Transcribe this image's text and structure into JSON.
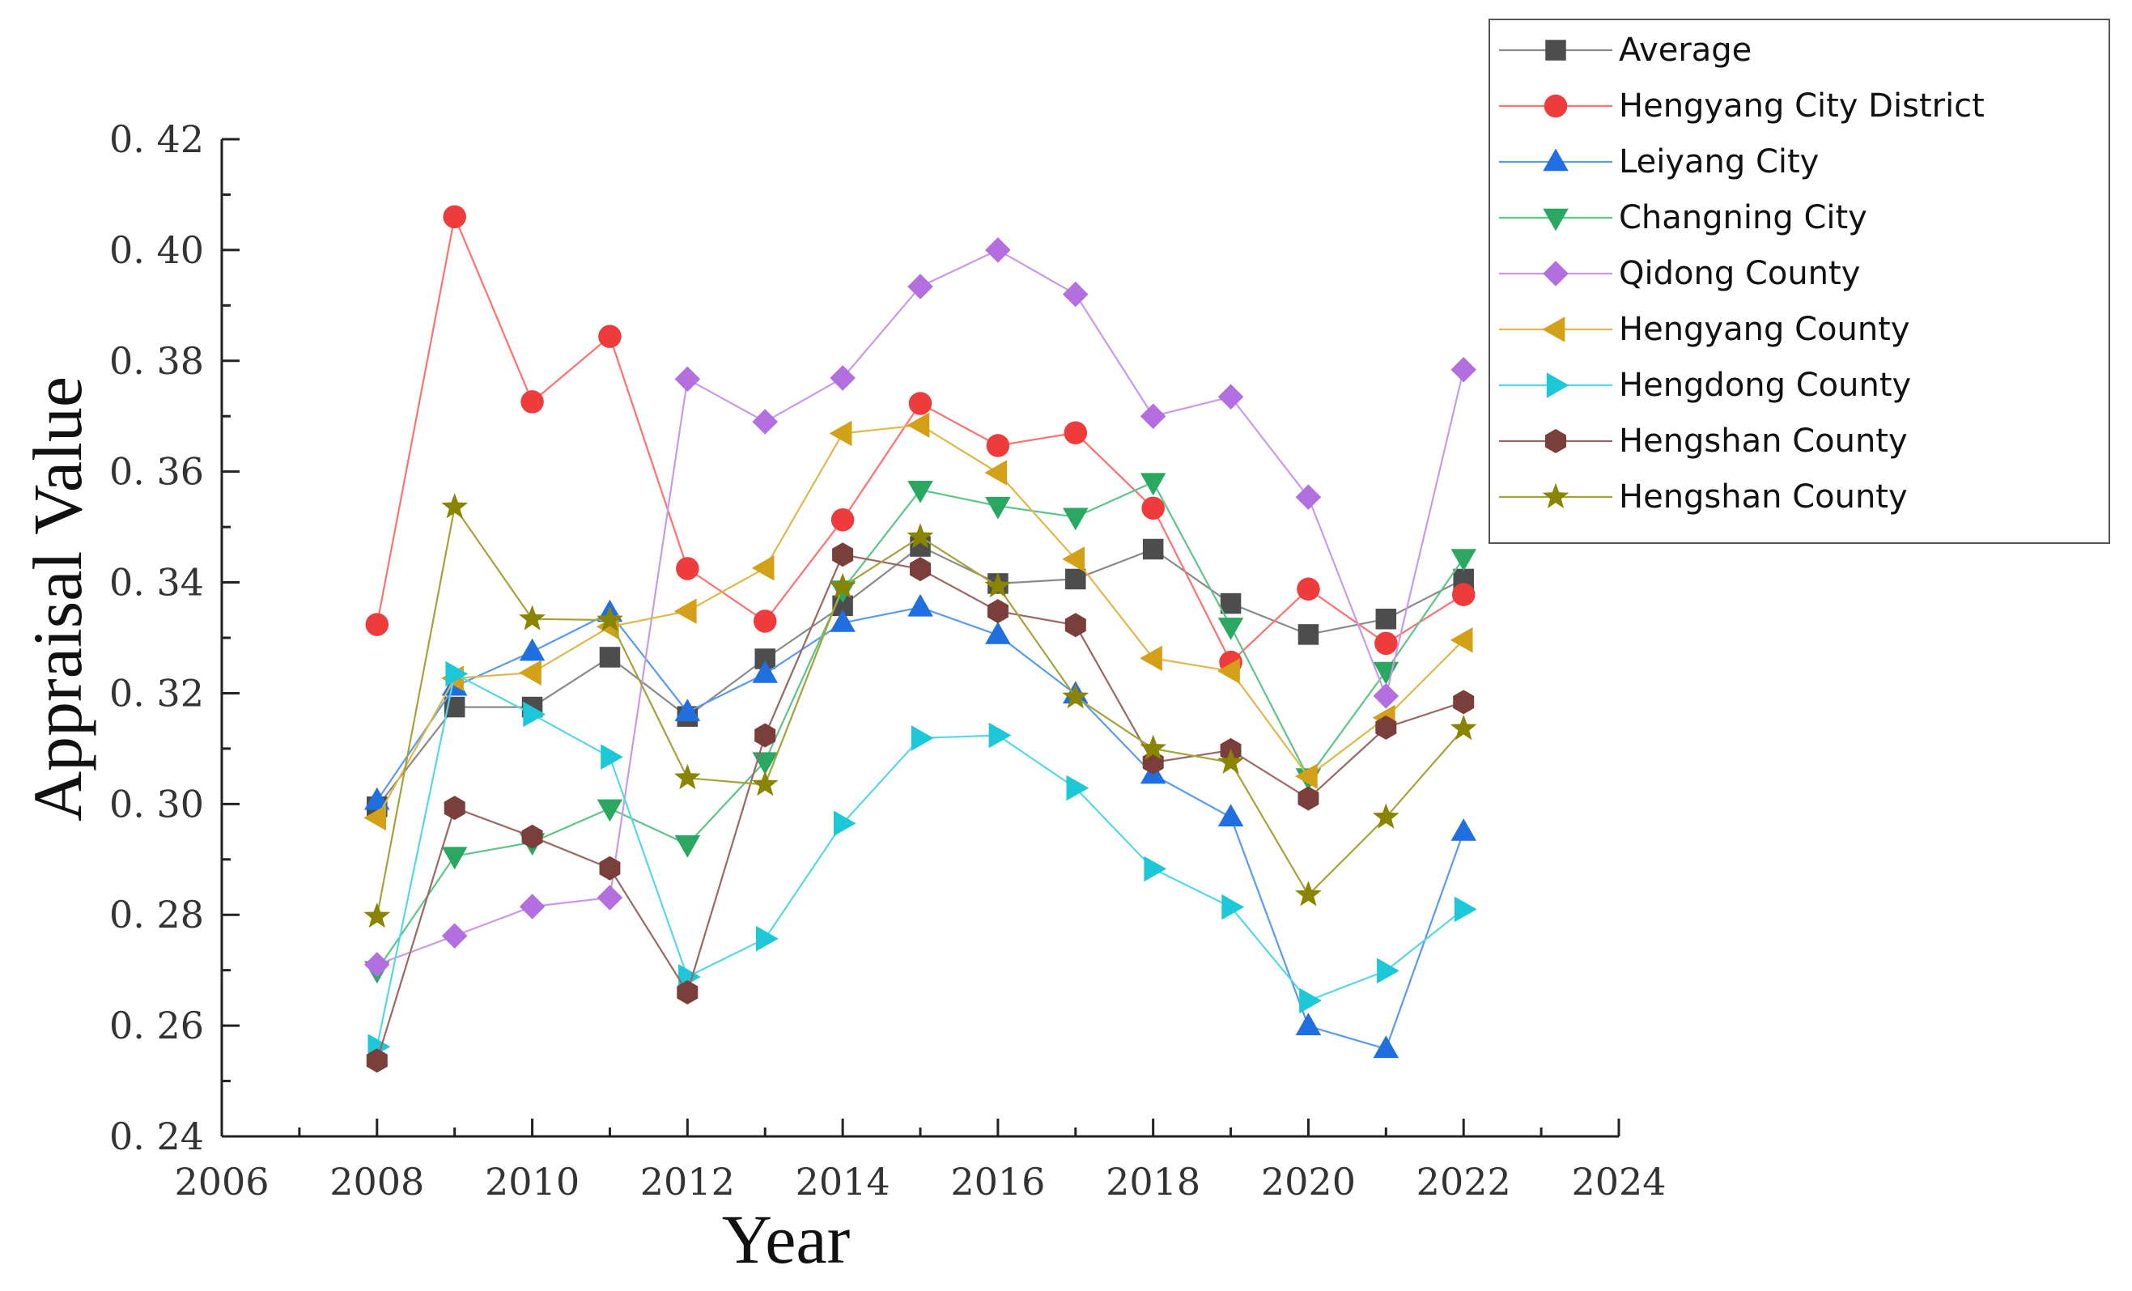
{
  "chart_data": {
    "type": "line",
    "title": "",
    "xlabel": "Year",
    "ylabel": "Appraisal Value",
    "xlim": [
      2006,
      2024
    ],
    "ylim": [
      0.24,
      0.42
    ],
    "x_ticks": [
      2006,
      2008,
      2010,
      2012,
      2014,
      2016,
      2018,
      2020,
      2022,
      2024
    ],
    "x_tick_labels": [
      "2006",
      "2008",
      "2010",
      "2012",
      "2014",
      "2016",
      "2018",
      "2020",
      "2022",
      "2024"
    ],
    "y_ticks": [
      0.24,
      0.26,
      0.28,
      0.3,
      0.32,
      0.34,
      0.36,
      0.38,
      0.4,
      0.42
    ],
    "y_tick_labels": [
      "0. 24",
      "0. 26",
      "0. 28",
      "0. 30",
      "0. 32",
      "0. 34",
      "0. 36",
      "0. 38",
      "0. 40",
      "0. 42"
    ],
    "grid": false,
    "legend_position": "top-right",
    "x": [
      2008,
      2009,
      2010,
      2011,
      2012,
      2013,
      2014,
      2015,
      2016,
      2017,
      2018,
      2019,
      2020,
      2021,
      2022
    ],
    "series": [
      {
        "name": "Average",
        "marker": "square",
        "color": "#4d4d4d",
        "line_color": "#8a8a8a",
        "values": [
          0.2995,
          0.3175,
          0.3175,
          0.3265,
          0.3158,
          0.3262,
          0.3358,
          0.3465,
          0.3398,
          0.3406,
          0.346,
          0.3362,
          0.3306,
          0.3334,
          0.3406
        ]
      },
      {
        "name": "Hengyang City District",
        "marker": "circle",
        "color": "#ee3b3b",
        "line_color": "#ff7070",
        "values": [
          0.3324,
          0.406,
          0.3726,
          0.3844,
          0.3425,
          0.333,
          0.3513,
          0.3723,
          0.3647,
          0.367,
          0.3534,
          0.3256,
          0.3388,
          0.329,
          0.3378
        ]
      },
      {
        "name": "Leiyang City",
        "marker": "triangle-up",
        "color": "#1f6fe0",
        "line_color": "#5a9bf0",
        "values": [
          0.3006,
          0.3212,
          0.3275,
          0.3345,
          0.3166,
          0.3235,
          0.3327,
          0.3355,
          0.3305,
          0.3198,
          0.3053,
          0.2976,
          0.2599,
          0.2558,
          0.295
        ]
      },
      {
        "name": "Changning City",
        "marker": "triangle-down",
        "color": "#2aa862",
        "line_color": "#5cc58a",
        "values": [
          0.27,
          0.2906,
          0.2931,
          0.2992,
          0.2927,
          0.3077,
          0.3387,
          0.3567,
          0.3538,
          0.3518,
          0.3581,
          0.332,
          0.3048,
          0.324,
          0.3444
        ]
      },
      {
        "name": "Qidong County",
        "marker": "diamond",
        "color": "#b36ee0",
        "line_color": "#c99aeb",
        "values": [
          0.271,
          0.2762,
          0.2815,
          0.2831,
          0.3767,
          0.369,
          0.3769,
          0.3934,
          0.4,
          0.392,
          0.37,
          0.3735,
          0.3554,
          0.3195,
          0.3784
        ]
      },
      {
        "name": "Hengyang County",
        "marker": "triangle-left",
        "color": "#d4a017",
        "line_color": "#e0b74a",
        "values": [
          0.2975,
          0.3227,
          0.3237,
          0.332,
          0.3348,
          0.3426,
          0.3669,
          0.3684,
          0.3598,
          0.3442,
          0.3263,
          0.324,
          0.305,
          0.3156,
          0.3296
        ]
      },
      {
        "name": "Hengdong County",
        "marker": "triangle-right",
        "color": "#1cc8d8",
        "line_color": "#55d8e4",
        "values": [
          0.2562,
          0.3235,
          0.3162,
          0.3085,
          0.2688,
          0.2757,
          0.2965,
          0.3119,
          0.3124,
          0.3029,
          0.2883,
          0.2814,
          0.2645,
          0.2699,
          0.281
        ]
      },
      {
        "name": "Hengshan County",
        "marker": "hexagon",
        "color": "#7a3f3a",
        "line_color": "#9a6864",
        "values": [
          0.2537,
          0.2993,
          0.2941,
          0.2884,
          0.266,
          0.3124,
          0.345,
          0.3424,
          0.3348,
          0.3323,
          0.3075,
          0.3097,
          0.301,
          0.3138,
          0.3184
        ]
      },
      {
        "name": "Hengshan County",
        "marker": "star",
        "color": "#8a8500",
        "line_color": "#a6a23a",
        "values": [
          0.2797,
          0.3536,
          0.3334,
          0.3332,
          0.3047,
          0.3035,
          0.3392,
          0.3482,
          0.3393,
          0.3193,
          0.31,
          0.3075,
          0.2836,
          0.2976,
          0.3136
        ]
      }
    ]
  }
}
